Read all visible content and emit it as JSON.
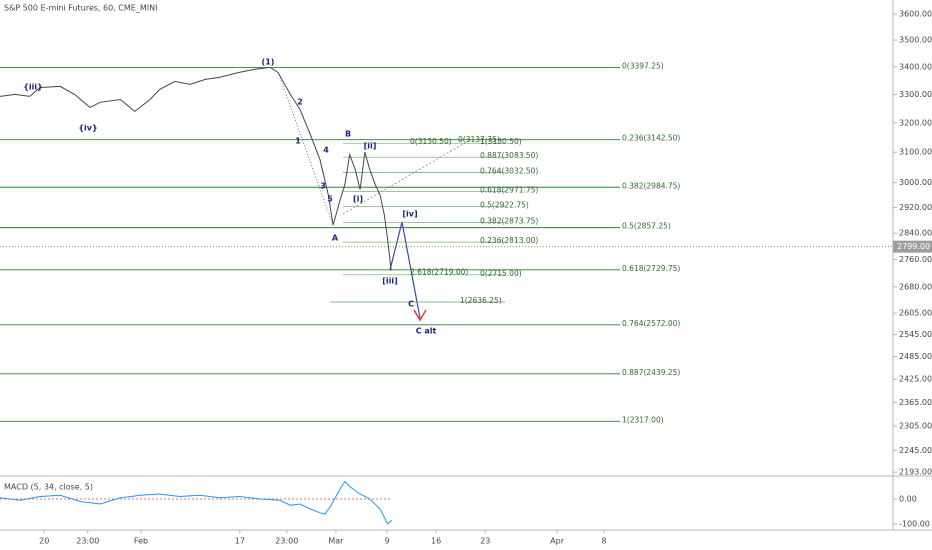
{
  "chart_data": [
    {
      "type": "line",
      "title": "S&P 500 E-mini Futures, 60, CME_MINI",
      "log_scale": true,
      "x": [
        11.6,
        13.8,
        15.9,
        17.4,
        20.3,
        22.4,
        24.6,
        26.1,
        29.0,
        31.1,
        33.3,
        34.7,
        36.9,
        39.1,
        41.3,
        43.4,
        46.3,
        48.5,
        50.7,
        51.8,
        53.6,
        55.0,
        56.5,
        57.9,
        59.1,
        59.8,
        60.8,
        61.5,
        62.2,
        63.0,
        63.7,
        64.4,
        65.1,
        65.9,
        66.6,
        67.2,
        67.7,
        68.2
      ],
      "series": [
        {
          "color": "#434651",
          "values": [
            3293,
            3300,
            3293,
            3325,
            3329,
            3300,
            3254,
            3272,
            3282,
            3240,
            3282,
            3318,
            3347,
            3336,
            3354,
            3362,
            3380,
            3391,
            3398,
            3380,
            3300,
            3247,
            3160,
            3075,
            2960,
            2865,
            2944,
            2993,
            3092,
            3042,
            2977,
            3100,
            3042,
            2993,
            2960,
            2897,
            2819,
            2728
          ]
        }
      ],
      "xlim": [
        11.6,
        140.8
      ],
      "xticks": [
        {
          "value": 18.0,
          "label": "20"
        },
        {
          "value": 24.3,
          "label": "23:00"
        },
        {
          "value": 32,
          "label": "Feb"
        },
        {
          "value": 46.3,
          "label": "17"
        },
        {
          "value": 53.1,
          "label": "23:00"
        },
        {
          "value": 60.2,
          "label": "Mar"
        },
        {
          "value": 67.6,
          "label": "9"
        },
        {
          "value": 74.7,
          "label": "16"
        },
        {
          "value": 81.8,
          "label": "23"
        },
        {
          "value": 92.2,
          "label": "Apr"
        },
        {
          "value": 99.0,
          "label": "8"
        }
      ],
      "ylim": [
        2184,
        3655
      ],
      "yticks": [
        {
          "value": 3600,
          "label": "3600.00"
        },
        {
          "value": 3500,
          "label": "3500.00"
        },
        {
          "value": 3400,
          "label": "3400.00"
        },
        {
          "value": 3300,
          "label": "3300.00"
        },
        {
          "value": 3200,
          "label": "3200.00"
        },
        {
          "value": 3100,
          "label": "3100.00"
        },
        {
          "value": 3000,
          "label": "3000.00"
        },
        {
          "value": 2920,
          "label": "2920.00"
        },
        {
          "value": 2840,
          "label": "2840.00"
        },
        {
          "value": 2760,
          "label": "2760.00"
        },
        {
          "value": 2680,
          "label": "2680.00"
        },
        {
          "value": 2605,
          "label": "2605.00"
        },
        {
          "value": 2545,
          "label": "2545.00"
        },
        {
          "value": 2485,
          "label": "2485.00"
        },
        {
          "value": 2425,
          "label": "2425.00"
        },
        {
          "value": 2365,
          "label": "2365.00"
        },
        {
          "value": 2305,
          "label": "2305.00"
        },
        {
          "value": 2245,
          "label": "2245.00"
        },
        {
          "value": 2193,
          "label": "2193.00"
        }
      ],
      "last_price": {
        "value": 2799,
        "label": "2799.00"
      },
      "levels": [
        {
          "value": 3397.25,
          "label": "0(3397.25)"
        },
        {
          "value": 3142.5,
          "label": "0.236(3142.50)"
        },
        {
          "value": 2984.75,
          "label": "0.382(2984.75)"
        },
        {
          "value": 2857.25,
          "label": "0.5(2857.25)"
        },
        {
          "value": 2729.75,
          "label": "0.618(2729.75)"
        },
        {
          "value": 2572,
          "label": "0.764(2572.00)"
        },
        {
          "value": 2439.25,
          "label": "0.887(2439.25)"
        },
        {
          "value": 2317,
          "label": "1(2317.00)"
        },
        {
          "value": 3130.5,
          "label": "1(3130.50)"
        },
        {
          "value": 3083.5,
          "label": "0.887(3083.50)"
        },
        {
          "value": 3032.5,
          "label": "0.764(3032.50)"
        },
        {
          "value": 2971.75,
          "label": "0.618(2971.75)"
        },
        {
          "value": 2922.75,
          "label": "0.5(2922.75)"
        },
        {
          "value": 2873.75,
          "label": "0.382(2873.75)"
        },
        {
          "value": 2813,
          "label": "0.236(2813.00)"
        },
        {
          "value": 2715,
          "label": "0(2715.00)"
        },
        {
          "value": 3130.5,
          "label": "0(3130.50)"
        },
        {
          "value": 3137.75,
          "label": "0(3137.75)"
        },
        {
          "value": 2719,
          "label": "2.618(2719.00)"
        },
        {
          "value": 2636.25,
          "label": "1(2636.25)"
        }
      ],
      "annotations": [
        "(1)",
        "{iii}",
        "{iv}",
        "2",
        "1",
        "4",
        "3",
        "5",
        "A",
        "B",
        "[ii]",
        "[i]",
        "[iv]",
        "[iii]",
        "C",
        "C alt"
      ]
    },
    {
      "type": "line",
      "title": "MACD (5, 34, close, 5)",
      "x": [
        11.6,
        14.5,
        17.4,
        20.3,
        23.2,
        26.1,
        29.0,
        31.9,
        34.7,
        37.6,
        40.5,
        43.4,
        46.3,
        49.2,
        52.1,
        53.6,
        55.0,
        56.5,
        57.9,
        58.6,
        59.4,
        60.8,
        61.5,
        62.2,
        63.7,
        65.1,
        66.6,
        67.7,
        68.3
      ],
      "series": [
        {
          "color": "#2196f3",
          "values": [
            5,
            -5,
            10,
            15,
            -10,
            -20,
            5,
            15,
            20,
            10,
            15,
            5,
            10,
            0,
            -5,
            -25,
            -20,
            -40,
            -55,
            -60,
            -30,
            40,
            70,
            50,
            20,
            0,
            -40,
            -100,
            -85
          ]
        }
      ],
      "ylim": [
        -124,
        88
      ],
      "yticks": [
        {
          "value": 0,
          "label": "0.00"
        },
        {
          "value": -100,
          "label": "-100.00"
        }
      ]
    }
  ]
}
